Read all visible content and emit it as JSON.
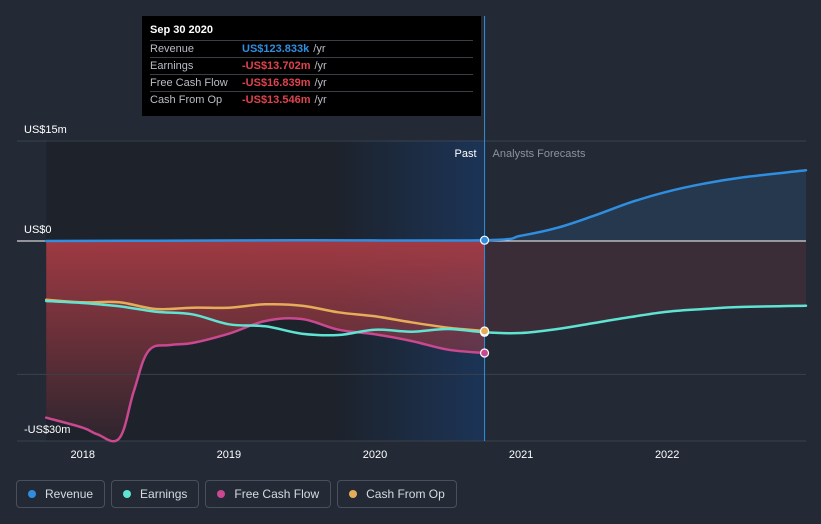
{
  "colors": {
    "background": "#232a35",
    "revenue": "#2f8ee0",
    "earnings": "#5fe3d2",
    "free_cash_flow": "#c9488f",
    "cash_from_op": "#e5ad5a",
    "negative_fill": "#a63b44"
  },
  "tooltip": {
    "date": "Sep 30 2020",
    "rows": [
      {
        "label": "Revenue",
        "value": "US$123.833k",
        "unit": "/yr",
        "color": "#2f8ee0"
      },
      {
        "label": "Earnings",
        "value": "-US$13.702m",
        "unit": "/yr",
        "color": "#e0434d"
      },
      {
        "label": "Free Cash Flow",
        "value": "-US$16.839m",
        "unit": "/yr",
        "color": "#e0434d"
      },
      {
        "label": "Cash From Op",
        "value": "-US$13.546m",
        "unit": "/yr",
        "color": "#e0434d"
      }
    ]
  },
  "legend": [
    {
      "label": "Revenue",
      "color": "#2f8ee0"
    },
    {
      "label": "Earnings",
      "color": "#5fe3d2"
    },
    {
      "label": "Free Cash Flow",
      "color": "#c9488f"
    },
    {
      "label": "Cash From Op",
      "color": "#e5ad5a"
    }
  ],
  "chart_data": {
    "type": "line",
    "past_label": "Past",
    "forecast_label": "Analysts Forecasts",
    "divider_x": 2020.75,
    "y_tick_labels": [
      {
        "value": 15,
        "label": "US$15m"
      },
      {
        "value": 0,
        "label": "US$0"
      },
      {
        "value": -30,
        "label": "-US$30m"
      }
    ],
    "x_tick_labels": [
      {
        "value": 2018,
        "label": "2018"
      },
      {
        "value": 2019,
        "label": "2019"
      },
      {
        "value": 2020,
        "label": "2020"
      },
      {
        "value": 2021,
        "label": "2021"
      },
      {
        "value": 2022,
        "label": "2022"
      }
    ],
    "xlim": [
      2017.55,
      2022.95
    ],
    "ylim": [
      -30,
      15
    ],
    "series": [
      {
        "name": "Revenue",
        "key": "revenue",
        "points": [
          [
            2017.75,
            0.0
          ],
          [
            2018.5,
            0.05
          ],
          [
            2019.5,
            0.1
          ],
          [
            2020.75,
            0.12
          ],
          [
            2021.0,
            0.8
          ],
          [
            2021.25,
            2.0
          ],
          [
            2021.5,
            3.8
          ],
          [
            2021.75,
            5.8
          ],
          [
            2022.0,
            7.4
          ],
          [
            2022.25,
            8.6
          ],
          [
            2022.5,
            9.5
          ],
          [
            2022.95,
            10.6
          ]
        ]
      },
      {
        "name": "Earnings",
        "key": "earnings",
        "points": [
          [
            2017.75,
            -9.0
          ],
          [
            2018.0,
            -9.3
          ],
          [
            2018.25,
            -9.8
          ],
          [
            2018.5,
            -10.6
          ],
          [
            2018.75,
            -11.0
          ],
          [
            2019.0,
            -12.5
          ],
          [
            2019.25,
            -12.8
          ],
          [
            2019.5,
            -13.9
          ],
          [
            2019.75,
            -14.1
          ],
          [
            2020.0,
            -13.3
          ],
          [
            2020.25,
            -13.6
          ],
          [
            2020.5,
            -13.2
          ],
          [
            2020.75,
            -13.7
          ],
          [
            2021.0,
            -13.8
          ],
          [
            2021.25,
            -13.2
          ],
          [
            2021.5,
            -12.3
          ],
          [
            2021.75,
            -11.4
          ],
          [
            2022.0,
            -10.6
          ],
          [
            2022.25,
            -10.2
          ],
          [
            2022.5,
            -9.9
          ],
          [
            2022.95,
            -9.7
          ]
        ]
      },
      {
        "name": "Free Cash Flow",
        "key": "free_cash_flow",
        "points": [
          [
            2017.75,
            -26.5
          ],
          [
            2018.0,
            -28.0
          ],
          [
            2018.1,
            -29.0
          ],
          [
            2018.25,
            -29.6
          ],
          [
            2018.35,
            -22.5
          ],
          [
            2018.45,
            -16.5
          ],
          [
            2018.6,
            -15.6
          ],
          [
            2018.75,
            -15.3
          ],
          [
            2019.0,
            -13.9
          ],
          [
            2019.25,
            -12.0
          ],
          [
            2019.5,
            -11.7
          ],
          [
            2019.75,
            -13.3
          ],
          [
            2020.0,
            -14.0
          ],
          [
            2020.25,
            -15.0
          ],
          [
            2020.5,
            -16.3
          ],
          [
            2020.75,
            -16.8
          ]
        ]
      },
      {
        "name": "Cash From Op",
        "key": "cash_from_op",
        "points": [
          [
            2017.75,
            -8.8
          ],
          [
            2018.0,
            -9.2
          ],
          [
            2018.25,
            -9.2
          ],
          [
            2018.5,
            -10.2
          ],
          [
            2018.75,
            -10.0
          ],
          [
            2019.0,
            -10.0
          ],
          [
            2019.25,
            -9.5
          ],
          [
            2019.5,
            -9.7
          ],
          [
            2019.75,
            -10.7
          ],
          [
            2020.0,
            -11.3
          ],
          [
            2020.25,
            -12.2
          ],
          [
            2020.5,
            -13.0
          ],
          [
            2020.75,
            -13.5
          ]
        ]
      }
    ]
  }
}
